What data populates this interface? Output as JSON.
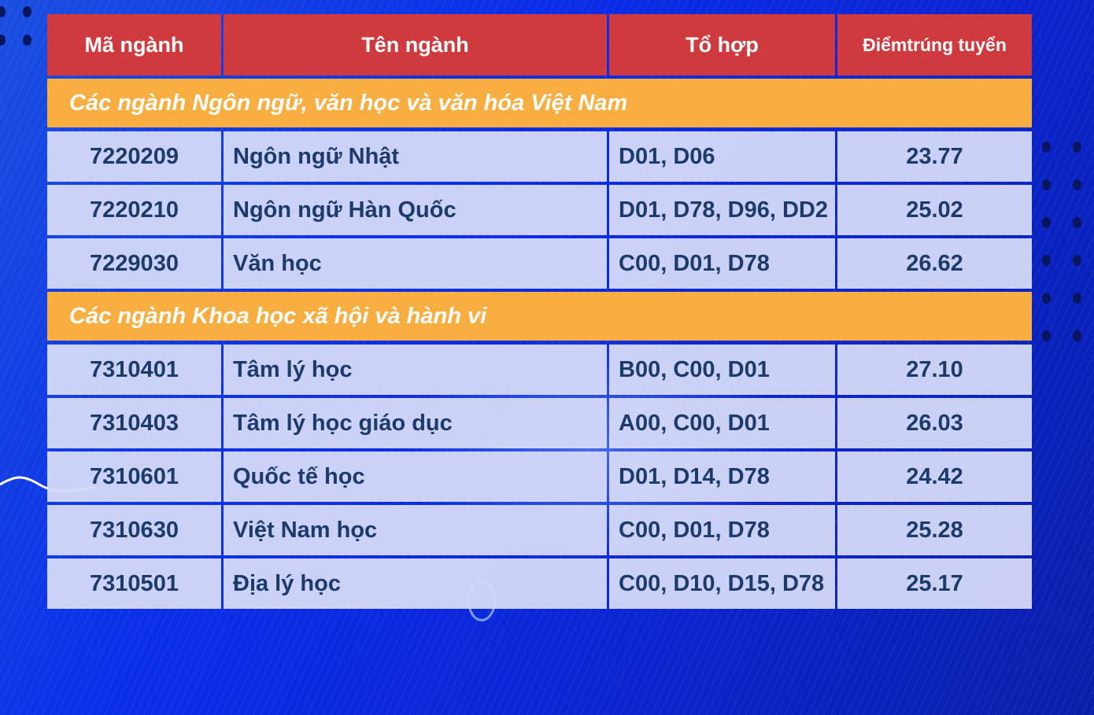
{
  "header": {
    "code": "Mã ngành",
    "name": "Tên ngành",
    "combo": "Tổ hợp",
    "score_line1": "Điểm",
    "score_line2": "trúng tuyển"
  },
  "groups": [
    {
      "title": "Các ngành Ngôn ngữ, văn học và văn hóa Việt Nam",
      "rows": [
        {
          "code": "7220209",
          "name": "Ngôn ngữ Nhật",
          "combo": "D01, D06",
          "score": "23.77"
        },
        {
          "code": "7220210",
          "name": "Ngôn ngữ Hàn Quốc",
          "combo": "D01, D78, D96, DD2",
          "score": "25.02"
        },
        {
          "code": "7229030",
          "name": "Văn học",
          "combo": "C00, D01, D78",
          "score": "26.62"
        }
      ]
    },
    {
      "title": "Các ngành Khoa học xã hội và hành vi",
      "rows": [
        {
          "code": "7310401",
          "name": "Tâm lý học",
          "combo": "B00, C00, D01",
          "score": "27.10"
        },
        {
          "code": "7310403",
          "name": "Tâm lý học giáo dục",
          "combo": "A00, C00, D01",
          "score": "26.03"
        },
        {
          "code": "7310601",
          "name": "Quốc tế học",
          "combo": "D01, D14, D78",
          "score": "24.42"
        },
        {
          "code": "7310630",
          "name": "Việt Nam học",
          "combo": "C00, D01, D78",
          "score": "25.28"
        },
        {
          "code": "7310501",
          "name": "Địa lý học",
          "combo": "C00, D10, D15, D78",
          "score": "25.17"
        }
      ]
    }
  ],
  "colors": {
    "header": "#cf3a3f",
    "group": "#f8ae40",
    "cell": "#d6daf8",
    "text": "#1c3b6a",
    "background": "#0a2ee8"
  }
}
